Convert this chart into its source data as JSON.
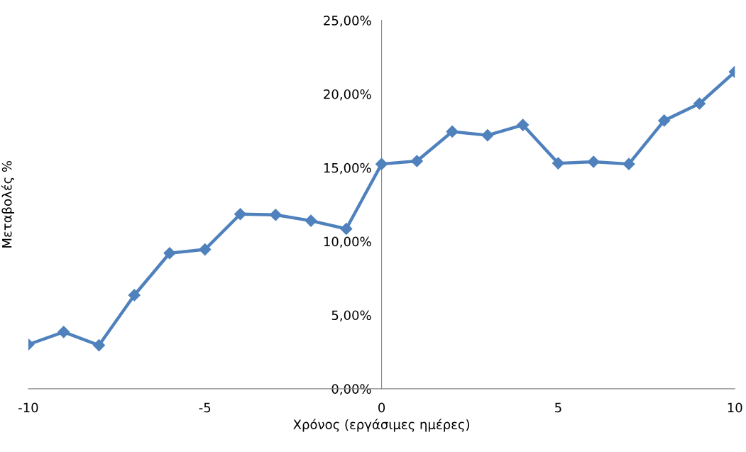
{
  "chart_data": {
    "type": "line",
    "xlabel": "Χρόνος (εργάσιμες ημέρες)",
    "ylabel": "Μεταβολές %",
    "x": [
      -10,
      -9,
      -8,
      -7,
      -6,
      -5,
      -4,
      -3,
      -2,
      -1,
      0,
      1,
      2,
      3,
      4,
      5,
      6,
      7,
      8,
      9,
      10
    ],
    "series": [
      {
        "color": "#4f81bd",
        "values": [
          3.0,
          3.85,
          2.95,
          6.35,
          9.2,
          9.45,
          11.85,
          11.8,
          11.4,
          10.85,
          15.25,
          15.45,
          17.45,
          17.2,
          17.9,
          15.3,
          15.4,
          15.25,
          18.2,
          19.35,
          21.5
        ]
      }
    ],
    "xlim": [
      -10,
      10
    ],
    "xticks": [
      -10,
      -5,
      0,
      5,
      10
    ],
    "ylim": [
      0,
      25
    ],
    "yticks": [
      {
        "value": 0,
        "label": "0,00%"
      },
      {
        "value": 5,
        "label": "5,00%"
      },
      {
        "value": 10,
        "label": "10,00%"
      },
      {
        "value": 15,
        "label": "15,00%"
      },
      {
        "value": 20,
        "label": "20,00%"
      },
      {
        "value": 25,
        "label": "25,00%"
      }
    ],
    "marker": "diamond",
    "line_style": "solid",
    "grid": false,
    "legend": false
  }
}
